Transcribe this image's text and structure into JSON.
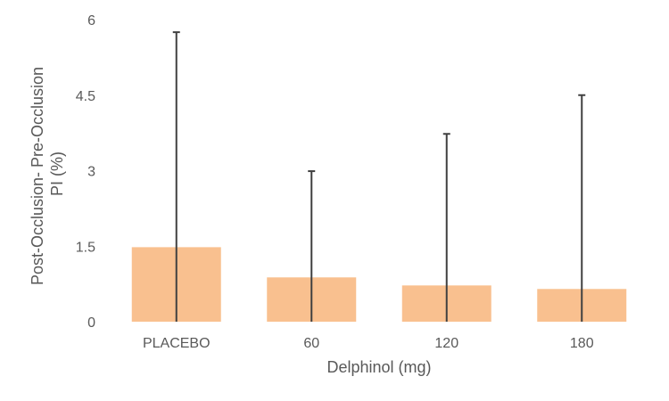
{
  "chart_data": {
    "type": "bar",
    "categories": [
      "PLACEBO",
      "60",
      "120",
      "180"
    ],
    "values": [
      1.48,
      0.88,
      0.72,
      0.65
    ],
    "error_upper": [
      5.75,
      2.99,
      3.73,
      4.5
    ],
    "error_lower": [
      0,
      0,
      0,
      0
    ],
    "ylim": [
      0,
      6
    ],
    "yticks": [
      "0",
      "1.5",
      "3",
      "4.5",
      "6"
    ],
    "ytick_values": [
      0,
      1.5,
      3,
      4.5,
      6
    ],
    "xlabel": "Delphinol  (mg)",
    "ylabel_lines": [
      "Post-Occlusion- Pre-Occlusion",
      "PI (%)"
    ],
    "grid": false,
    "bar_color": "#f9c08f",
    "error_color": "#404040"
  }
}
